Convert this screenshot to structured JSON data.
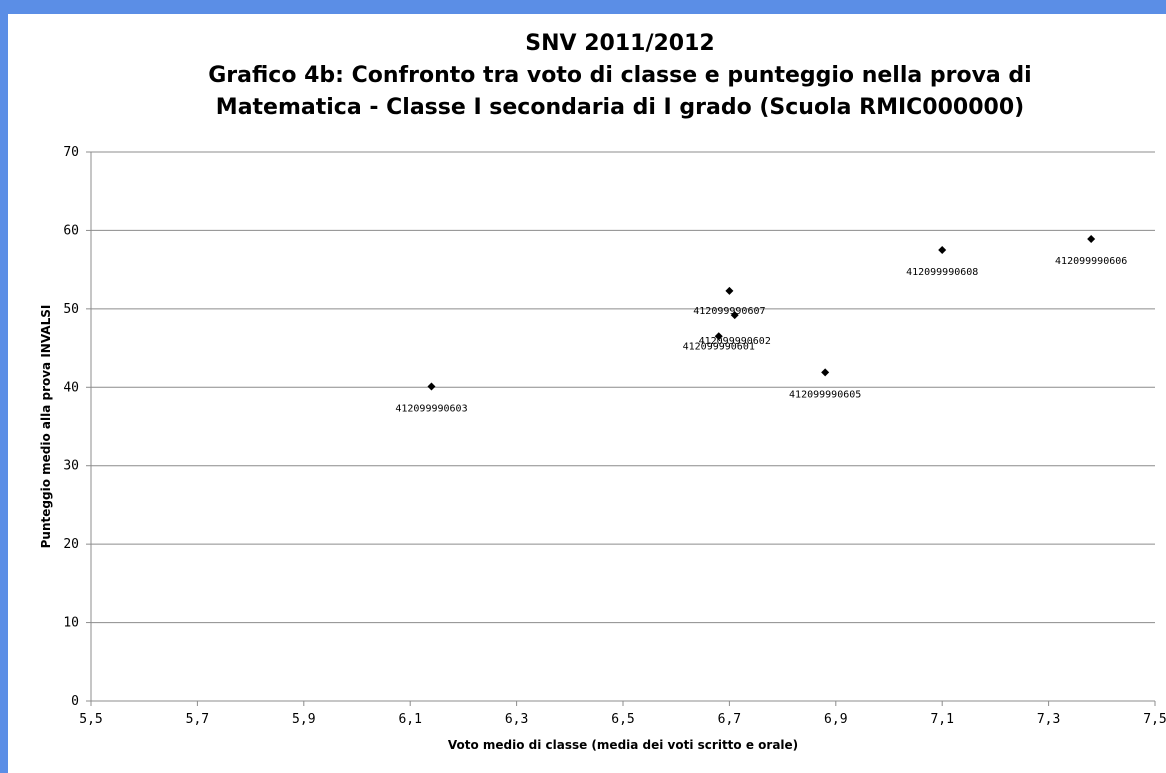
{
  "chart_data": {
    "type": "scatter",
    "title_lines": [
      "SNV 2011/2012",
      "Grafico 4b: Confronto tra voto di classe e punteggio nella prova di",
      "Matematica - Classe I secondaria di I grado (Scuola RMIC000000)"
    ],
    "xlabel": "Voto medio di classe (media dei voti scritto e orale)",
    "ylabel": "Punteggio medio alla prova INVALSI",
    "xlim": [
      5.5,
      7.5
    ],
    "ylim": [
      0,
      70
    ],
    "x_ticks": [
      "5,5",
      "5,7",
      "5,9",
      "6,1",
      "6,3",
      "6,5",
      "6,7",
      "6,9",
      "7,1",
      "7,3",
      "7,5"
    ],
    "y_ticks": [
      "0",
      "10",
      "20",
      "30",
      "40",
      "50",
      "60",
      "70"
    ],
    "grid": "horizontal",
    "marker_color": "#000000",
    "points": [
      {
        "label": "412099990603",
        "x": 6.14,
        "y": 40.1
      },
      {
        "label": "412099990601",
        "x": 6.68,
        "y": 46.5
      },
      {
        "label": "412099990607",
        "x": 6.7,
        "y": 52.3
      },
      {
        "label": "412099990602",
        "x": 6.71,
        "y": 49.2
      },
      {
        "label": "412099990605",
        "x": 6.88,
        "y": 41.9
      },
      {
        "label": "412099990608",
        "x": 7.1,
        "y": 57.5
      },
      {
        "label": "412099990606",
        "x": 7.38,
        "y": 58.9
      }
    ]
  }
}
